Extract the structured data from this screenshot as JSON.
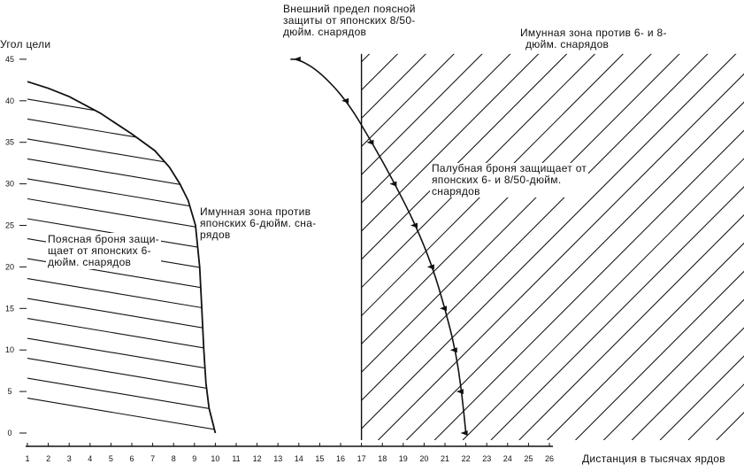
{
  "chart_data": {
    "type": "area",
    "ylabel": "Угол цели",
    "xlabel": "Дистанция в тысячах ярдов",
    "x_ticks": [
      1,
      2,
      3,
      4,
      5,
      6,
      7,
      8,
      9,
      10,
      11,
      12,
      13,
      14,
      15,
      16,
      17,
      18,
      19,
      20,
      21,
      22,
      23,
      24,
      25,
      26
    ],
    "y_ticks": [
      0,
      5,
      10,
      15,
      20,
      25,
      30,
      35,
      40,
      45
    ],
    "xlim": [
      1,
      26
    ],
    "ylim": [
      0,
      45
    ],
    "belt_armor_boundary": {
      "x": [
        10.0,
        9.7,
        9.55,
        9.45,
        9.35,
        9.25,
        9.05,
        8.7,
        8.3,
        7.8,
        7.1,
        6.0,
        4.5,
        3.0,
        2.0,
        1.0
      ],
      "y": [
        0,
        3,
        6,
        10,
        15,
        20,
        25,
        28,
        30,
        32,
        34,
        36,
        38.5,
        40.5,
        41.5,
        42.3
      ]
    },
    "belt_outer_limit": {
      "x": [
        22.0,
        21.8,
        21.5,
        21.0,
        20.4,
        19.6,
        18.6,
        17.5,
        16.3,
        15.0,
        14.0,
        13.6
      ],
      "y": [
        0,
        5,
        10,
        15,
        20,
        25,
        30,
        35,
        40,
        43.5,
        45,
        45
      ],
      "arrow_points_y": [
        0,
        5,
        10,
        15,
        20,
        25,
        30,
        35,
        40,
        45
      ]
    },
    "deck_armor_min_range": 17,
    "annotations": {
      "outer_limit": [
        "Внешний предел поясной",
        "защиты от японских 8/50-",
        "дюйм. снарядов"
      ],
      "immune_6_8": [
        "Имунная зона против 6- и 8-",
        "дюйм. снарядов"
      ],
      "deck_armor": [
        "Палубная броня защищает от",
        "японских 6- и 8/50-дюйм.",
        "снарядов"
      ],
      "immune_6": [
        "Имунная зона против",
        "японских 6-дюйм. сна-",
        "рядов"
      ],
      "belt_armor": [
        "Поясная броня защи-",
        "щает от японских 6-",
        "дюйм. снарядов"
      ]
    }
  }
}
